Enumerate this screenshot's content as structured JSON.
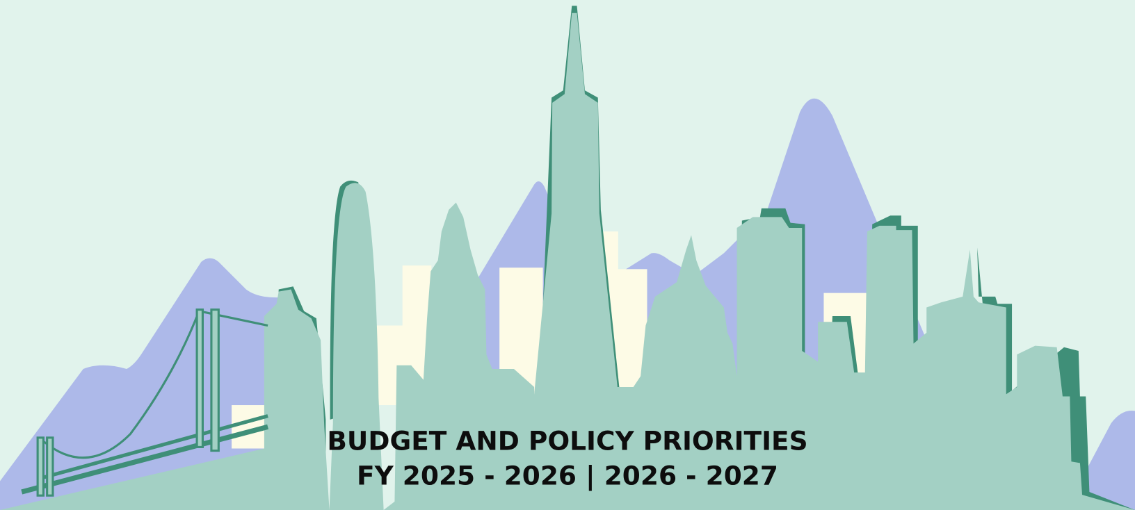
{
  "banner": {
    "title_line_1": "BUDGET AND POLICY PRIORITIES",
    "title_line_2": "FY 2025 - 2026 | 2026 - 2027"
  }
}
